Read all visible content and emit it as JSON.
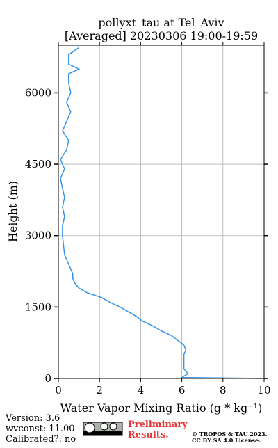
{
  "chart_data": {
    "type": "line",
    "title": "pollyxt_tau at Tel_Aviv",
    "subtitle": "[Averaged] 20230306 19:00-19:59",
    "x_label": "Water Vapor Mixing Ratio (g * kg⁻¹)",
    "y_label": "Height (m)",
    "color": "#3592e8",
    "heights": [
      0,
      20,
      100,
      200,
      300,
      400,
      500,
      600,
      700,
      800,
      900,
      1000,
      1100,
      1200,
      1300,
      1400,
      1500,
      1600,
      1700,
      1800,
      1900,
      2000,
      2100,
      2200,
      2300,
      2400,
      2500,
      2600,
      2800,
      3000,
      3200,
      3400,
      3600,
      3800,
      4000,
      4200,
      4400,
      4600,
      4800,
      5000,
      5200,
      5400,
      5600,
      5800,
      6000,
      6200,
      6400,
      6500,
      6600,
      6800,
      6950
    ],
    "values": [
      10,
      6.0,
      6.3,
      6.1,
      6.1,
      6.1,
      6.1,
      6.2,
      6.1,
      5.8,
      5.5,
      5.0,
      4.6,
      4.1,
      3.8,
      3.4,
      3.0,
      2.5,
      2.1,
      1.4,
      1.0,
      0.8,
      0.7,
      0.7,
      0.6,
      0.5,
      0.4,
      0.3,
      0.25,
      0.2,
      0.2,
      0.3,
      0.2,
      0.3,
      0.2,
      0.1,
      0.3,
      0.1,
      0.4,
      0.5,
      0.2,
      0.4,
      0.6,
      0.4,
      0.6,
      0.5,
      0.5,
      1.0,
      0.5,
      0.5,
      1.0
    ],
    "xlim": [
      0,
      10
    ],
    "xticks": [
      0,
      2,
      4,
      6,
      8,
      10
    ],
    "ylim": [
      0,
      7000
    ],
    "yticks": [
      0,
      1500,
      3000,
      4500,
      6000
    ],
    "grid": true
  },
  "footer": {
    "version": "Version: 3.6",
    "wvconst": "wvconst:  11.00",
    "calibrated": "Calibrated?: no",
    "preliminary": [
      "Preliminary",
      "Results."
    ],
    "copyright": [
      "© TROPOS & TAU 2023.",
      "CC BY SA 4.0 License."
    ]
  }
}
